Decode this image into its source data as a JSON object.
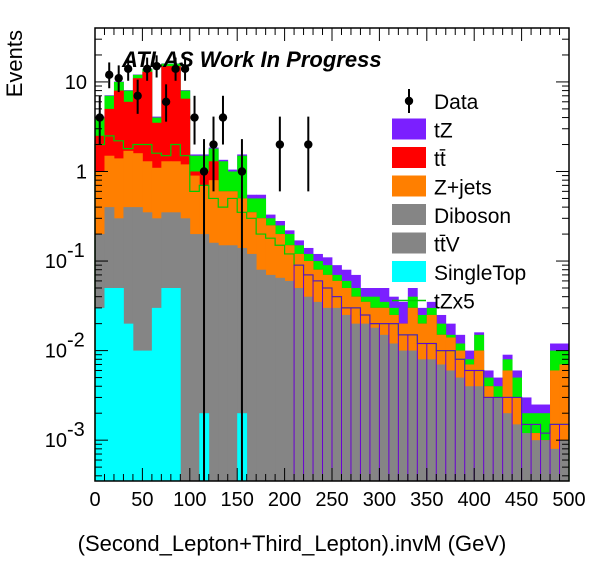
{
  "chart_data": {
    "type": "stacked-histogram",
    "banner": "ATLAS Work In Progress",
    "xlabel": "(Second_Lepton+Third_Lepton).invM (GeV)",
    "ylabel": "Events",
    "xlim": [
      0,
      500
    ],
    "ylim": [
      0.00035,
      40
    ],
    "yscale": "log",
    "bin_width": 10,
    "x_ticks": [
      0,
      50,
      100,
      150,
      200,
      250,
      300,
      350,
      400,
      450,
      500
    ],
    "x_tick_labels": [
      "0",
      "50",
      "100",
      "150",
      "200",
      "250",
      "300",
      "350",
      "400",
      "450",
      "500"
    ],
    "y_ticks": [
      0.001,
      0.01,
      0.1,
      1,
      10
    ],
    "y_tick_labels": [
      {
        "base": "10",
        "exp": "-3"
      },
      {
        "base": "10",
        "exp": "-2"
      },
      {
        "base": "10",
        "exp": "-1"
      },
      {
        "base": "1",
        "exp": ""
      },
      {
        "base": "10",
        "exp": ""
      }
    ],
    "legend_position": "right",
    "legend": [
      {
        "label": "Data",
        "kind": "marker",
        "color": "#000000"
      },
      {
        "label": "tZ",
        "kind": "fill",
        "color": "#7b1fff"
      },
      {
        "label": "tt̄",
        "kind": "fill",
        "color": "#ff0000"
      },
      {
        "label": "Z+jets",
        "kind": "fill",
        "color": "#ff7f00"
      },
      {
        "label": "Diboson",
        "kind": "fill",
        "color": "#858585"
      },
      {
        "label": "tt̄V",
        "kind": "fill",
        "color": "#858585"
      },
      {
        "label": "SingleTop",
        "kind": "fill",
        "color": "#00ffff"
      },
      {
        "label": "tZx5",
        "kind": "line",
        "color": "#00cc00"
      }
    ],
    "stack_order": [
      "SingleTop",
      "Diboson+ttV",
      "Z+jets",
      "ttbar",
      "tZ"
    ],
    "colors": {
      "SingleTop": "#00ffff",
      "Diboson+ttV": "#858585",
      "Z+jets": "#ff7f00",
      "ttbar": "#ff0000",
      "tZ": "#7b1fff",
      "extra": "#00ee00",
      "tZx5": "#00cc00",
      "tZx5_purple": "#6a00d4"
    },
    "cumulative": {
      "SingleTop": [
        0.03,
        0.05,
        0.05,
        0.02,
        0.01,
        0.01,
        0.03,
        0.05,
        0.05,
        0,
        0,
        0.002,
        0,
        0,
        0,
        0.002,
        0,
        0,
        0,
        0,
        0,
        0,
        0,
        0,
        0,
        0,
        0,
        0,
        0,
        0,
        0,
        0,
        0,
        0,
        0,
        0,
        0,
        0,
        0,
        0,
        0,
        0,
        0,
        0,
        0,
        0,
        0,
        0,
        0,
        0
      ],
      "Diboson+ttV": [
        0.2,
        0.4,
        0.3,
        0.4,
        0.4,
        0.35,
        0.3,
        0.35,
        0.35,
        0.3,
        0.2,
        0.2,
        0.16,
        0.15,
        0.15,
        0.14,
        0.12,
        0.08,
        0.07,
        0.065,
        0.06,
        0.05,
        0.04,
        0.035,
        0.03,
        0.03,
        0.025,
        0.02,
        0.02,
        0.018,
        0.015,
        0.012,
        0.01,
        0.01,
        0.008,
        0.008,
        0.007,
        0.006,
        0.005,
        0.004,
        0.004,
        0.003,
        0.003,
        0.002,
        0.0015,
        0.0012,
        0.001,
        0.001,
        0.0008,
        0.001
      ],
      "Z+jets": [
        1.0,
        1.5,
        1.4,
        1.7,
        1.6,
        1.3,
        1.1,
        1.3,
        1.3,
        1.2,
        0.9,
        0.7,
        0.8,
        0.6,
        0.6,
        0.5,
        0.35,
        0.3,
        0.25,
        0.2,
        0.15,
        0.12,
        0.1,
        0.08,
        0.07,
        0.06,
        0.05,
        0.04,
        0.035,
        0.03,
        0.03,
        0.025,
        0.02,
        0.03,
        0.02,
        0.025,
        0.015,
        0.014,
        0.01,
        0.007,
        0.01,
        0.004,
        0.003,
        0.006,
        0.003,
        0.001,
        0.0012,
        0.001,
        0.006,
        0.007
      ],
      "ttbar": [
        2.5,
        5.0,
        8.0,
        6.0,
        11.0,
        13.0,
        3.5,
        15.0,
        15.0,
        6.5,
        1.0,
        1.0,
        1.3,
        0.6,
        0.6,
        0.5,
        0.35,
        0.3,
        0.25,
        0.2,
        0.15,
        0.12,
        0.1,
        0.08,
        0.07,
        0.06,
        0.05,
        0.04,
        0.035,
        0.03,
        0.03,
        0.025,
        0.02,
        0.03,
        0.02,
        0.025,
        0.015,
        0.014,
        0.01,
        0.007,
        0.01,
        0.004,
        0.003,
        0.006,
        0.003,
        0.001,
        0.0012,
        0.001,
        0.006,
        0.007
      ],
      "extra": [
        4.0,
        7.0,
        10.0,
        8.0,
        12.0,
        14.0,
        4.0,
        16.0,
        16.0,
        8.0,
        1.5,
        1.5,
        1.8,
        1.3,
        1.0,
        1.5,
        0.5,
        0.5,
        0.3,
        0.25,
        0.2,
        0.15,
        0.12,
        0.1,
        0.09,
        0.07,
        0.06,
        0.05,
        0.04,
        0.04,
        0.035,
        0.03,
        0.02,
        0.04,
        0.025,
        0.03,
        0.02,
        0.015,
        0.012,
        0.008,
        0.015,
        0.005,
        0.004,
        0.008,
        0.005,
        0.002,
        0.002,
        0.002,
        0.01,
        0.01
      ],
      "tZ": [
        4.1,
        7.1,
        10.1,
        8.1,
        12.1,
        14.1,
        4.1,
        16.1,
        16.1,
        8.1,
        1.55,
        1.55,
        1.85,
        1.35,
        1.05,
        1.55,
        0.55,
        0.55,
        0.33,
        0.28,
        0.22,
        0.17,
        0.14,
        0.12,
        0.11,
        0.09,
        0.08,
        0.07,
        0.05,
        0.05,
        0.05,
        0.04,
        0.035,
        0.05,
        0.03,
        0.035,
        0.025,
        0.02,
        0.015,
        0.01,
        0.016,
        0.006,
        0.005,
        0.009,
        0.006,
        0.003,
        0.0025,
        0.0025,
        0.012,
        0.012
      ]
    },
    "tZx5": [
      2.0,
      2.5,
      2.2,
      1.8,
      2.0,
      2.0,
      1.6,
      1.5,
      2.0,
      1.5,
      0.6,
      0.7,
      0.5,
      0.4,
      0.5,
      0.35,
      0.3,
      0.2,
      0.18,
      0.15,
      0.12,
      0.09,
      0.07,
      0.06,
      0.05,
      0.04,
      0.03,
      0.03,
      0.025,
      0.02,
      0.02,
      0.02,
      0.015,
      0.015,
      0.012,
      0.012,
      0.01,
      0.01,
      0.008,
      0.006,
      0.006,
      0.003,
      0.003,
      0.003,
      0.003,
      0.0015,
      0.0015,
      0.0012,
      0.0015,
      0.0015
    ],
    "data": [
      {
        "x": 5,
        "y": 4,
        "err_low": 2,
        "err_high": 3
      },
      {
        "x": 15,
        "y": 12,
        "err_low": 3.5,
        "err_high": 4.5
      },
      {
        "x": 25,
        "y": 11,
        "err_low": 3.3,
        "err_high": 4.3
      },
      {
        "x": 35,
        "y": 14,
        "err_low": 3.7,
        "err_high": 4.7
      },
      {
        "x": 45,
        "y": 7,
        "err_low": 2.6,
        "err_high": 3.6
      },
      {
        "x": 55,
        "y": 14,
        "err_low": 3.7,
        "err_high": 4.7
      },
      {
        "x": 65,
        "y": 15,
        "err_low": 3.8,
        "err_high": 4.8
      },
      {
        "x": 75,
        "y": 6,
        "err_low": 2.4,
        "err_high": 3.4
      },
      {
        "x": 85,
        "y": 14,
        "err_low": 3.7,
        "err_high": 4.7
      },
      {
        "x": 95,
        "y": 14,
        "err_low": 3.7,
        "err_high": 4.7
      },
      {
        "x": 105,
        "y": 4,
        "err_low": 2,
        "err_high": 3
      },
      {
        "x": 115,
        "y": 1,
        "err_low": 1,
        "err_high": 1.3
      },
      {
        "x": 125,
        "y": 2,
        "err_low": 1.4,
        "err_high": 2.1
      },
      {
        "x": 135,
        "y": 4,
        "err_low": 2,
        "err_high": 3
      },
      {
        "x": 155,
        "y": 1,
        "err_low": 1,
        "err_high": 1.3
      },
      {
        "x": 195,
        "y": 2,
        "err_low": 1.4,
        "err_high": 2.1
      },
      {
        "x": 225,
        "y": 2,
        "err_low": 1.4,
        "err_high": 2.1
      }
    ]
  }
}
